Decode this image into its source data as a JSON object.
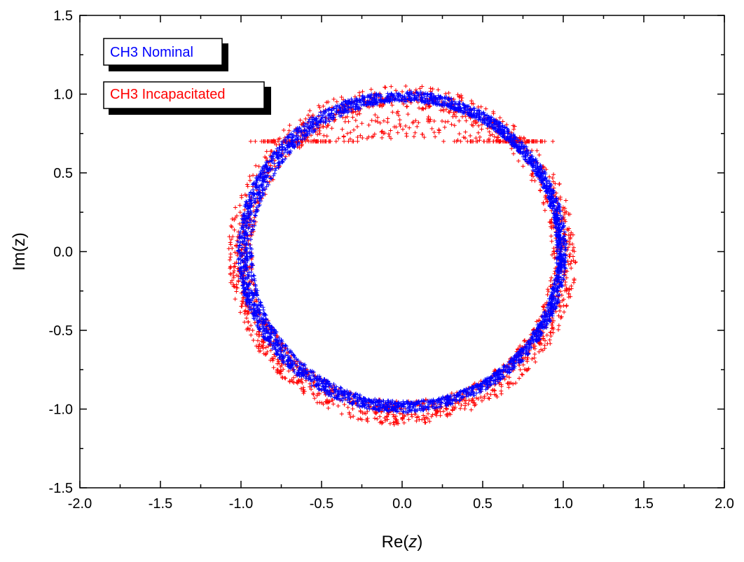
{
  "chart_data": {
    "type": "scatter",
    "title": "",
    "xlabel": "Re(z)",
    "xlabel_parts": [
      "Re(",
      "z",
      ")"
    ],
    "ylabel": "Im(z)",
    "xlim": [
      -2.0,
      2.0
    ],
    "ylim": [
      -1.5,
      1.5
    ],
    "xticks": [
      -2.0,
      -1.5,
      -1.0,
      -0.5,
      0.0,
      0.5,
      1.0,
      1.5,
      2.0
    ],
    "xtick_labels": [
      "-2.0",
      "-1.5",
      "-1.0",
      "-0.5",
      "0.0",
      "0.5",
      "1.0",
      "1.5",
      "2.0"
    ],
    "yticks": [
      -1.5,
      -1.0,
      -0.5,
      0.0,
      0.5,
      1.0,
      1.5
    ],
    "ytick_labels": [
      "-1.5",
      "-1.0",
      "-0.5",
      "0.0",
      "0.5",
      "1.0",
      "1.5"
    ],
    "grid": false,
    "marker": "+",
    "legend_placement": "top-left",
    "series": [
      {
        "name": "CH3 Nominal",
        "color": "#0000ff",
        "shape": "ring",
        "center": [
          0.0,
          0.0
        ],
        "radius_range": [
          0.96,
          1.02
        ],
        "inner_offset": [
          0.02,
          0.0
        ],
        "inner_radius": 0.95,
        "points": 3000
      },
      {
        "name": "CH3 Incapacitated",
        "color": "#ff0000",
        "shape": "ring",
        "center": [
          0.0,
          -0.02
        ],
        "radius_range": [
          0.93,
          1.08
        ],
        "top_gap_min_y": 0.7,
        "points": 1800
      }
    ]
  }
}
